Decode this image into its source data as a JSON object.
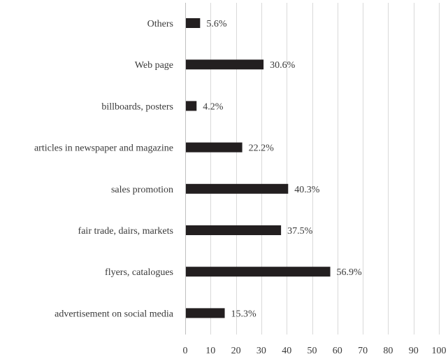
{
  "chart_data": {
    "type": "bar",
    "orientation": "horizontal",
    "categories": [
      "Others",
      "Web page",
      "billboards, posters",
      "articles in newspaper and magazine",
      "sales promotion",
      "fair trade, dairs, markets",
      "flyers, catalogues",
      "advertisement on social media"
    ],
    "values": [
      5.6,
      30.6,
      4.2,
      22.2,
      40.3,
      37.5,
      56.9,
      15.3
    ],
    "data_labels": [
      "5.6%",
      "30.6%",
      "4.2%",
      "22.2%",
      "40.3%",
      "37.5%",
      "56.9%",
      "15.3%"
    ],
    "xlim": [
      0,
      100
    ],
    "x_ticks": [
      0,
      10,
      20,
      30,
      40,
      50,
      60,
      70,
      80,
      90,
      100
    ],
    "grid": true,
    "legend": "none",
    "bar_color": "#231f20",
    "title": "",
    "xlabel": "",
    "ylabel": ""
  }
}
